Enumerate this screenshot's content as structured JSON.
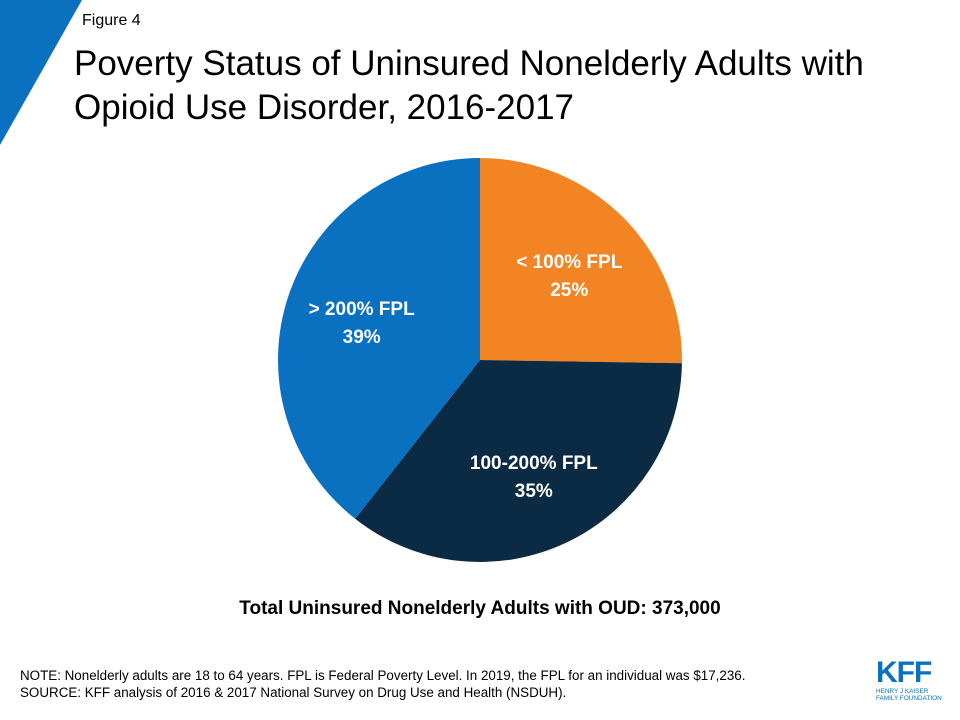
{
  "colors": {
    "corner_accent": "#0a70c0",
    "slice_under_100": "#f28423",
    "slice_100_200": "#0b2a44",
    "slice_over_200": "#0a70c0",
    "label_text": "#ffffff",
    "logo": "#0a70c0"
  },
  "figure_label": "Figure 4",
  "title": "Poverty Status of Uninsured Nonelderly Adults with Opioid Use Disorder, 2016-2017",
  "chart_data": {
    "type": "pie",
    "slices": [
      {
        "label": "< 100%  FPL",
        "value": 25,
        "value_label": "25%",
        "color": "#f28423"
      },
      {
        "label": "100-200%  FPL",
        "value": 35,
        "value_label": "35%",
        "color": "#0b2a44"
      },
      {
        "label": "> 200%  FPL",
        "value": 39,
        "value_label": "39%",
        "color": "#0a70c0"
      }
    ],
    "start_angle_deg": 0,
    "direction": "clockwise"
  },
  "total_text": "Total Uninsured Nonelderly Adults with OUD: 373,000",
  "notes": {
    "note": "NOTE: Nonelderly adults are 18 to 64 years. FPL is Federal Poverty Level. In 2019, the FPL for an individual was $17,236.",
    "source": "SOURCE: KFF analysis of 2016 & 2017 National Survey on Drug Use and Health (NSDUH)."
  },
  "logo": {
    "mark": "KFF",
    "line1": "HENRY J KAISER",
    "line2": "FAMILY FOUNDATION"
  }
}
